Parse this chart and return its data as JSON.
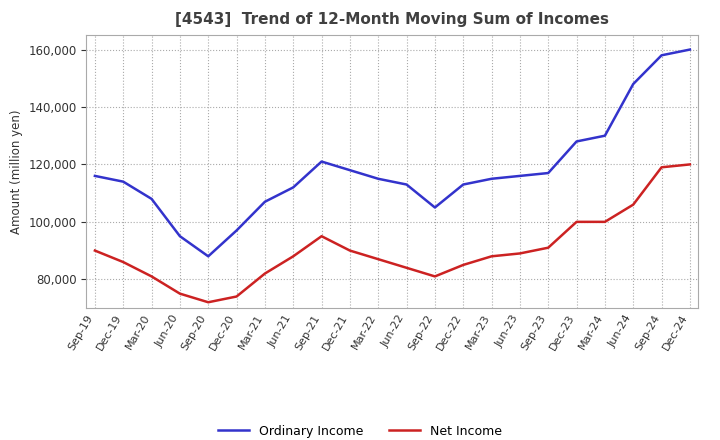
{
  "title": "[4543]  Trend of 12-Month Moving Sum of Incomes",
  "ylabel": "Amount (million yen)",
  "xlabels": [
    "Sep-19",
    "Dec-19",
    "Mar-20",
    "Jun-20",
    "Sep-20",
    "Dec-20",
    "Mar-21",
    "Jun-21",
    "Sep-21",
    "Dec-21",
    "Mar-22",
    "Jun-22",
    "Sep-22",
    "Dec-22",
    "Mar-23",
    "Jun-23",
    "Sep-23",
    "Dec-23",
    "Mar-24",
    "Jun-24",
    "Sep-24",
    "Dec-24"
  ],
  "ordinary_income": [
    116000,
    114000,
    108000,
    95000,
    88000,
    97000,
    107000,
    112000,
    121000,
    118000,
    115000,
    113000,
    105000,
    113000,
    115000,
    116000,
    117000,
    128000,
    130000,
    148000,
    158000,
    160000
  ],
  "net_income": [
    90000,
    86000,
    81000,
    75000,
    72000,
    74000,
    82000,
    88000,
    95000,
    90000,
    87000,
    84000,
    81000,
    85000,
    88000,
    89000,
    91000,
    100000,
    100000,
    106000,
    119000,
    120000
  ],
  "ordinary_color": "#3333cc",
  "net_color": "#cc2222",
  "ylim": [
    70000,
    165000
  ],
  "yticks": [
    80000,
    100000,
    120000,
    140000,
    160000
  ],
  "background_color": "#ffffff",
  "grid_color": "#aaaaaa",
  "title_color": "#404040",
  "line_width": 1.8
}
